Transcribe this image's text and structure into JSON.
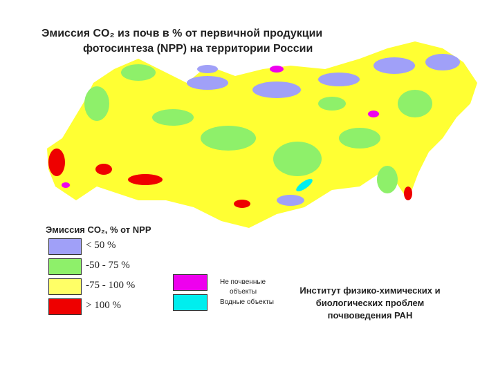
{
  "header": {
    "title_line1": "Эмиссия CO₂ из почв в % от первичной продукции",
    "title_line2": "фотосинтеза (NPP) на территории России"
  },
  "legend": {
    "title": "Эмиссия CO₂,  % от NPP",
    "items": [
      {
        "label": "< 50 %",
        "color": "#a0a0f8"
      },
      {
        "label": "-50 - 75 %",
        "color": "#8ef06a"
      },
      {
        "label": "-75 - 100 %",
        "color": "#ffff66"
      },
      {
        "label": "> 100 %",
        "color": "#ee0000"
      }
    ],
    "extra": [
      {
        "label_line1": "Не почвенные",
        "label_line2": "объекты",
        "color": "#ee00ee"
      },
      {
        "label_line1": "Водные объекты",
        "color": "#00eeee"
      }
    ]
  },
  "footer": {
    "line1": "Институт физико-химических и",
    "line2": "биологических проблем",
    "line3": "почвоведения РАН"
  }
}
